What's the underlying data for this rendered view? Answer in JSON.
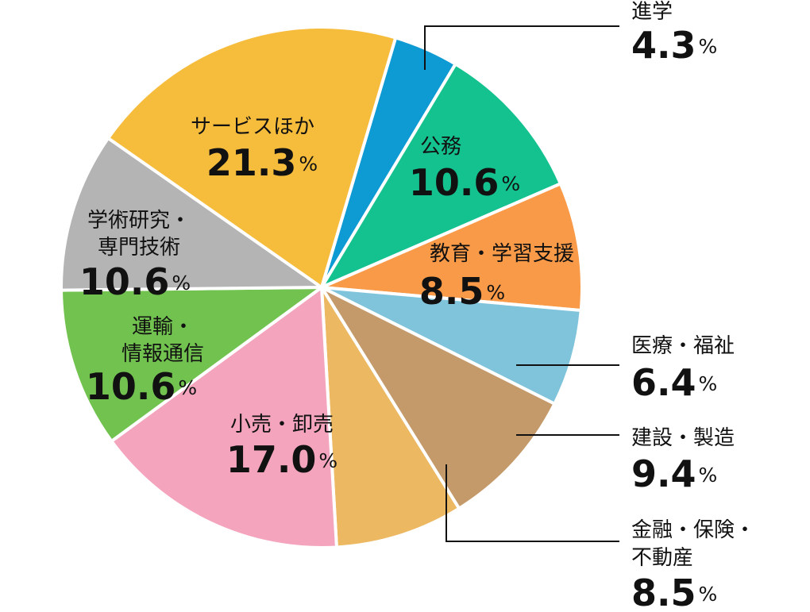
{
  "chart_data": {
    "type": "pie",
    "categories": [
      "進学",
      "公務",
      "教育・学習支援",
      "医療・福祉",
      "建設・製造",
      "金融・保険・\n不動産",
      "小売・卸売",
      "運輸・\n情報通信",
      "学術研究・\n専門技術",
      "サービスほか"
    ],
    "values": [
      4.3,
      10.6,
      8.5,
      6.4,
      9.4,
      8.5,
      17.0,
      10.6,
      10.6,
      21.3
    ],
    "value_labels": [
      "4.3%",
      "10.6%",
      "8.5%",
      "6.4%",
      "9.4%",
      "8.5%",
      "17.0%",
      "10.6%",
      "10.6%",
      "21.3%"
    ],
    "colors": [
      "#0e9ad2",
      "#14c28f",
      "#f99a48",
      "#80c4dc",
      "#c49a6a",
      "#ecb861",
      "#f4a5bd",
      "#72c250",
      "#b4b4b4",
      "#f6bc3c"
    ]
  }
}
